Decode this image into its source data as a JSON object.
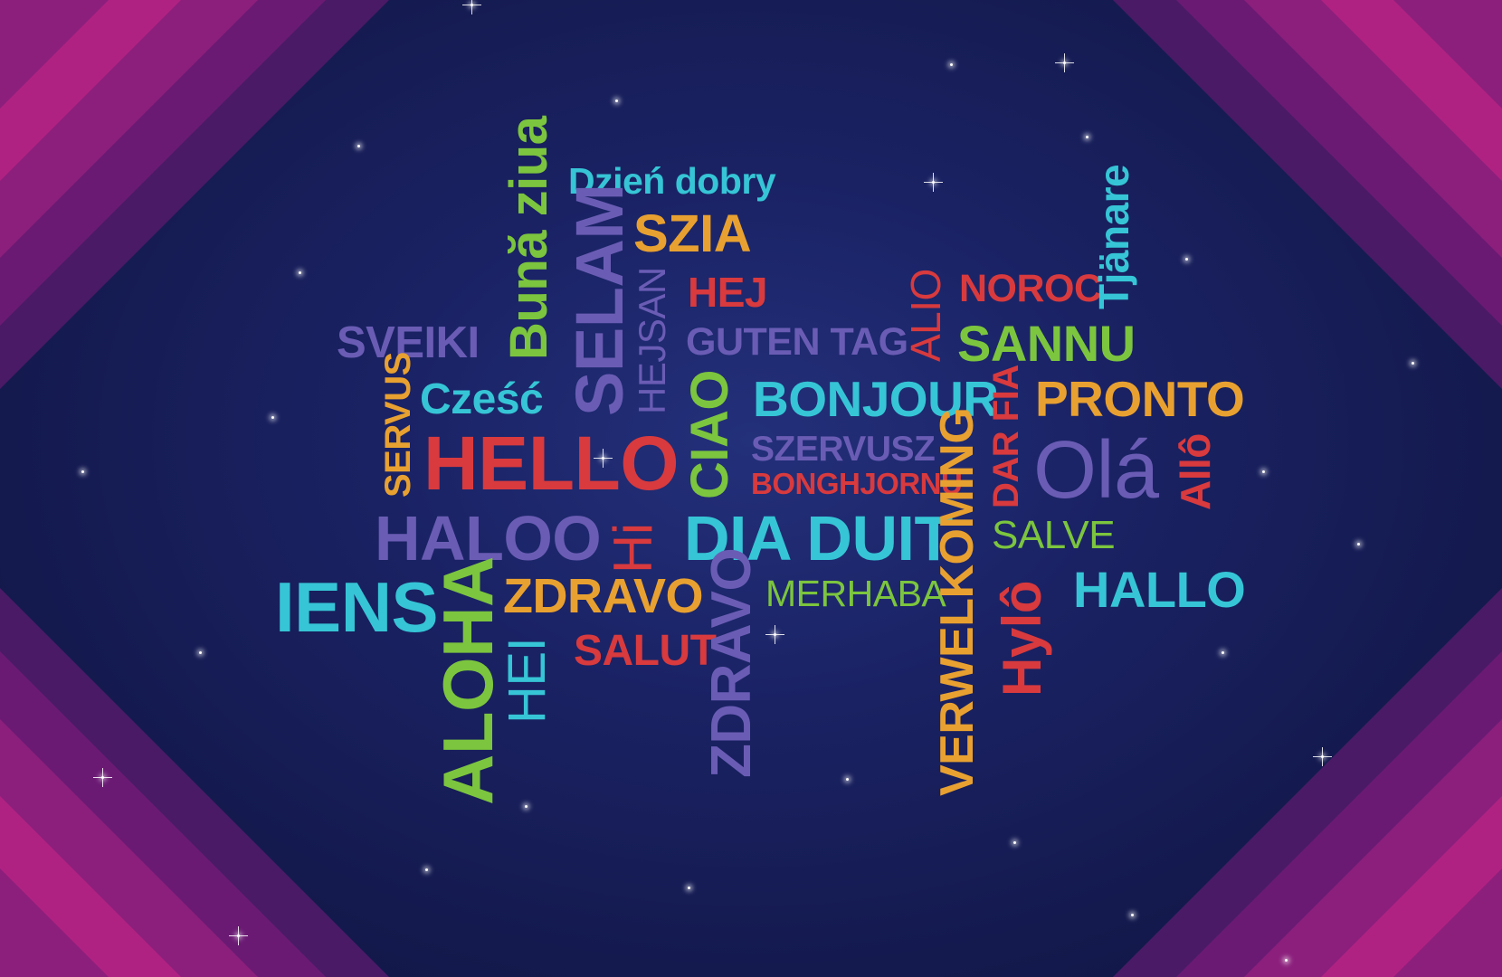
{
  "colors": {
    "background": "#141a4e",
    "corner_dark": "#5a1a6e",
    "corner_light": "#b0207e",
    "teal": "#36c5d6",
    "green": "#7cc53e",
    "orange": "#e8a130",
    "red": "#d83a3e",
    "purple": "#6a5cb4"
  },
  "words": {
    "dzien_dobry": "Dzień dobry",
    "szia": "SZIA",
    "buna_ziua": "Bună ziua",
    "selam": "SELAM",
    "hejsan": "HEJSAN",
    "hej": "HEJ",
    "sveiki": "SVEIKI",
    "guten_tag": "GUTEN TAG",
    "alio": "ALIO",
    "noroc": "NOROC",
    "sannu": "SANNU",
    "tjanare": "Tjänare",
    "servus": "SERVUS",
    "czesc": "Cześć",
    "ciao": "CIAO",
    "bonjour": "BONJOUR",
    "dar_fia": "DAR FIA",
    "pronto": "PRONTO",
    "hello": "HELLO",
    "szervusz": "SZERVUSZ",
    "bonghjornu": "BONGHJORNU",
    "verwelkoming": "VERWELKOMING",
    "ola": "Olá",
    "allo": "Allô",
    "haloo": "HALOO",
    "hi": "Hi",
    "dia_duit": "DIA DUIT",
    "salve": "SALVE",
    "iens": "IENS",
    "aloha": "ALOHA",
    "zdravo_h": "ZDRAVO",
    "zdravo_v": "ZDRAVO",
    "merhaba": "MERHABA",
    "hylo": "Hylô",
    "hallo": "HALLO",
    "hei": "HEI",
    "salut": "SALUT"
  }
}
